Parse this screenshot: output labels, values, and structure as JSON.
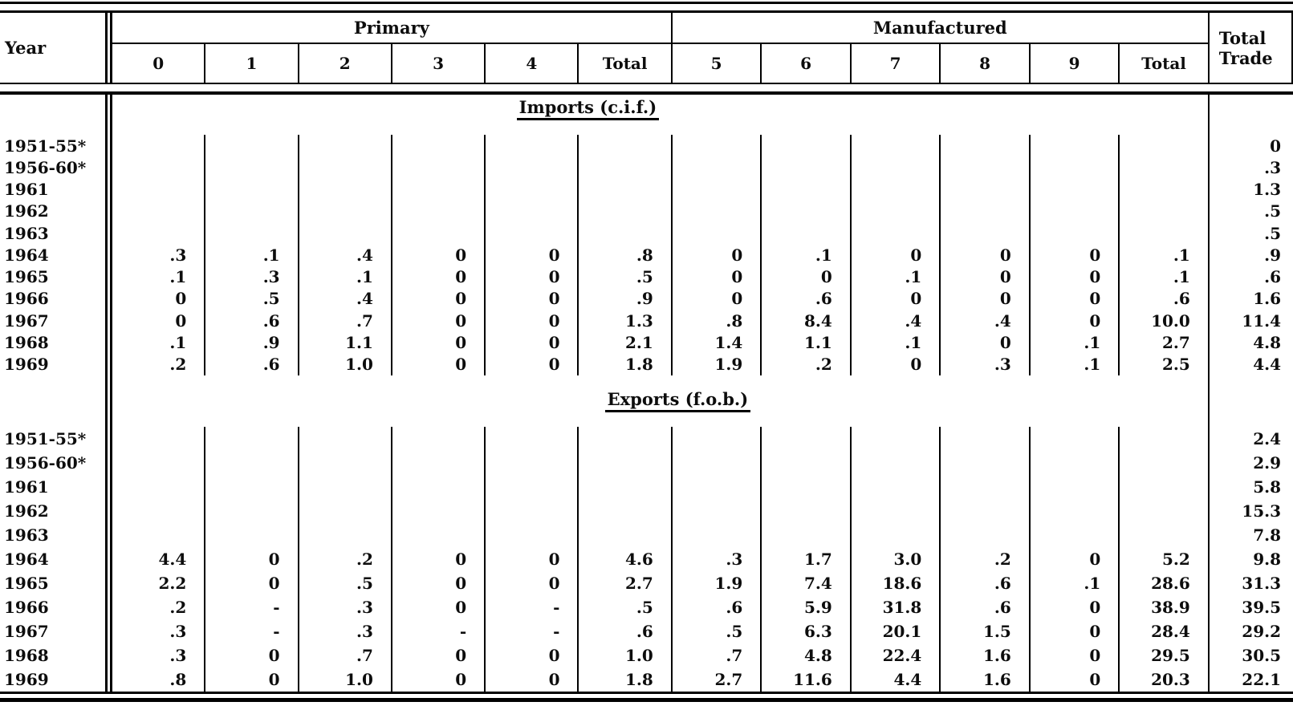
{
  "page": {
    "background": "#ffffff",
    "ink": "#0d0d0d"
  },
  "table": {
    "title_column_header": "Year",
    "groups": [
      {
        "label": "Primary",
        "columns": [
          "0",
          "1",
          "2",
          "3",
          "4",
          "Total"
        ]
      },
      {
        "label": "Manufactured",
        "columns": [
          "5",
          "6",
          "7",
          "8",
          "9",
          "Total"
        ]
      }
    ],
    "total_trade_header": {
      "line1": "Total",
      "line2": "Trade"
    },
    "sections": [
      {
        "title": "Imports (c.i.f.)",
        "rows": [
          {
            "year": "1951-55*",
            "cells": [
              "",
              "",
              "",
              "",
              "",
              "",
              "",
              "",
              "",
              "",
              "",
              ""
            ],
            "total_trade": "0"
          },
          {
            "year": "1956-60*",
            "cells": [
              "",
              "",
              "",
              "",
              "",
              "",
              "",
              "",
              "",
              "",
              "",
              ""
            ],
            "total_trade": ".3"
          },
          {
            "year": "1961",
            "cells": [
              "",
              "",
              "",
              "",
              "",
              "",
              "",
              "",
              "",
              "",
              "",
              ""
            ],
            "total_trade": "1.3"
          },
          {
            "year": "1962",
            "cells": [
              "",
              "",
              "",
              "",
              "",
              "",
              "",
              "",
              "",
              "",
              "",
              ""
            ],
            "total_trade": ".5"
          },
          {
            "year": "1963",
            "cells": [
              "",
              "",
              "",
              "",
              "",
              "",
              "",
              "",
              "",
              "",
              "",
              ""
            ],
            "total_trade": ".5"
          },
          {
            "year": "1964",
            "cells": [
              ".3",
              ".1",
              ".4",
              "0",
              "0",
              ".8",
              "0",
              ".1",
              "0",
              "0",
              "0",
              ".1"
            ],
            "total_trade": ".9"
          },
          {
            "year": "1965",
            "cells": [
              ".1",
              ".3",
              ".1",
              "0",
              "0",
              ".5",
              "0",
              "0",
              ".1",
              "0",
              "0",
              ".1"
            ],
            "total_trade": ".6"
          },
          {
            "year": "1966",
            "cells": [
              "0",
              ".5",
              ".4",
              "0",
              "0",
              ".9",
              "0",
              ".6",
              "0",
              "0",
              "0",
              ".6"
            ],
            "total_trade": "1.6"
          },
          {
            "year": "1967",
            "cells": [
              "0",
              ".6",
              ".7",
              "0",
              "0",
              "1.3",
              ".8",
              "8.4",
              ".4",
              ".4",
              "0",
              "10.0"
            ],
            "total_trade": "11.4"
          },
          {
            "year": "1968",
            "cells": [
              ".1",
              ".9",
              "1.1",
              "0",
              "0",
              "2.1",
              "1.4",
              "1.1",
              ".1",
              "0",
              ".1",
              "2.7"
            ],
            "total_trade": "4.8"
          },
          {
            "year": "1969",
            "cells": [
              ".2",
              ".6",
              "1.0",
              "0",
              "0",
              "1.8",
              "1.9",
              ".2",
              "0",
              ".3",
              ".1",
              "2.5"
            ],
            "total_trade": "4.4"
          }
        ]
      },
      {
        "title": "Exports (f.o.b.)",
        "rows": [
          {
            "year": "1951-55*",
            "cells": [
              "",
              "",
              "",
              "",
              "",
              "",
              "",
              "",
              "",
              "",
              "",
              ""
            ],
            "total_trade": "2.4"
          },
          {
            "year": "1956-60*",
            "cells": [
              "",
              "",
              "",
              "",
              "",
              "",
              "",
              "",
              "",
              "",
              "",
              ""
            ],
            "total_trade": "2.9"
          },
          {
            "year": "1961",
            "cells": [
              "",
              "",
              "",
              "",
              "",
              "",
              "",
              "",
              "",
              "",
              "",
              ""
            ],
            "total_trade": "5.8"
          },
          {
            "year": "1962",
            "cells": [
              "",
              "",
              "",
              "",
              "",
              "",
              "",
              "",
              "",
              "",
              "",
              ""
            ],
            "total_trade": "15.3"
          },
          {
            "year": "1963",
            "cells": [
              "",
              "",
              "",
              "",
              "",
              "",
              "",
              "",
              "",
              "",
              "",
              ""
            ],
            "total_trade": "7.8"
          },
          {
            "year": "1964",
            "cells": [
              "4.4",
              "0",
              ".2",
              "0",
              "0",
              "4.6",
              ".3",
              "1.7",
              "3.0",
              ".2",
              "0",
              "5.2"
            ],
            "total_trade": "9.8"
          },
          {
            "year": "1965",
            "cells": [
              "2.2",
              "0",
              ".5",
              "0",
              "0",
              "2.7",
              "1.9",
              "7.4",
              "18.6",
              ".6",
              ".1",
              "28.6"
            ],
            "total_trade": "31.3"
          },
          {
            "year": "1966",
            "cells": [
              ".2",
              "-",
              ".3",
              "0",
              "-",
              ".5",
              ".6",
              "5.9",
              "31.8",
              ".6",
              "0",
              "38.9"
            ],
            "total_trade": "39.5"
          },
          {
            "year": "1967",
            "cells": [
              ".3",
              "-",
              ".3",
              "-",
              "-",
              ".6",
              ".5",
              "6.3",
              "20.1",
              "1.5",
              "0",
              "28.4"
            ],
            "total_trade": "29.2"
          },
          {
            "year": "1968",
            "cells": [
              ".3",
              "0",
              ".7",
              "0",
              "0",
              "1.0",
              ".7",
              "4.8",
              "22.4",
              "1.6",
              "0",
              "29.5"
            ],
            "total_trade": "30.5"
          },
          {
            "year": "1969",
            "cells": [
              ".8",
              "0",
              "1.0",
              "0",
              "0",
              "1.8",
              "2.7",
              "11.6",
              "4.4",
              "1.6",
              "0",
              "20.3"
            ],
            "total_trade": "22.1"
          }
        ]
      }
    ]
  }
}
